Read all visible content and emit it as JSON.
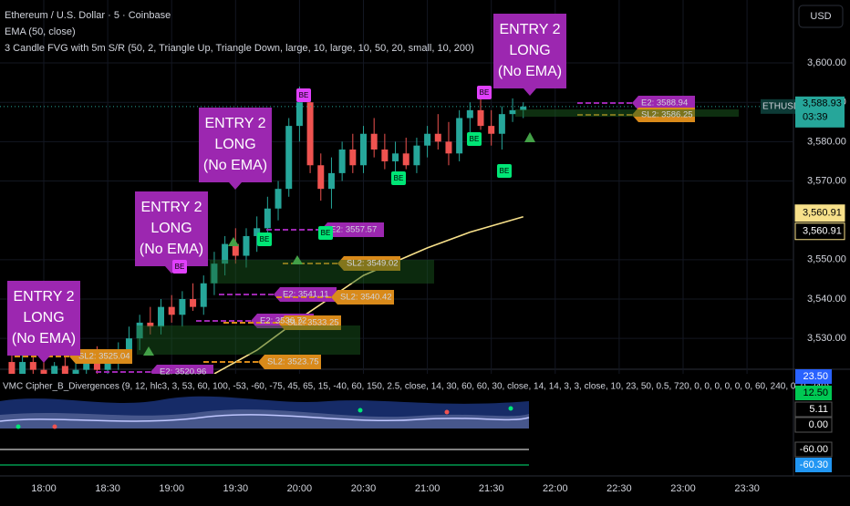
{
  "header": {
    "symbol": "Ethereum / U.S. Dollar · 5 · Coinbase",
    "indicator1": "EMA (50, close)",
    "indicator2": "3 Candle FVG with 5m S/R (50, 2, Triangle Up, Triangle Down, large, 10, large, 10, 50, 20, small, 10, 200)"
  },
  "currency": "USD",
  "chart_data": {
    "type": "candlestick",
    "x": [
      "17:45",
      "17:50",
      "17:55",
      "18:00",
      "18:05",
      "18:10",
      "18:15",
      "18:20",
      "18:25",
      "18:30",
      "18:35",
      "18:40",
      "18:45",
      "18:50",
      "18:55",
      "19:00",
      "19:05",
      "19:10",
      "19:15",
      "19:20",
      "19:25",
      "19:30",
      "19:35",
      "19:40",
      "19:45",
      "19:50",
      "19:55",
      "20:00",
      "20:05",
      "20:10",
      "20:15",
      "20:20",
      "20:25",
      "20:30",
      "20:35",
      "20:40",
      "20:45",
      "20:50",
      "20:55",
      "21:00",
      "21:05",
      "21:10",
      "21:15",
      "21:20",
      "21:25",
      "21:30",
      "21:35",
      "21:40",
      "21:45"
    ],
    "open": [
      3524,
      3521,
      3524,
      3522,
      3520,
      3523,
      3521,
      3522,
      3525,
      3522,
      3524,
      3527,
      3530,
      3534,
      3533,
      3538,
      3536,
      3540,
      3538,
      3544,
      3549,
      3554,
      3551,
      3556,
      3558,
      3563,
      3568,
      3584,
      3590,
      3574,
      3568,
      3572,
      3578,
      3574,
      3582,
      3578,
      3575,
      3577,
      3574,
      3579,
      3582,
      3580,
      3577,
      3586,
      3588,
      3584,
      3582,
      3587,
      3588
    ],
    "high": [
      3527,
      3526,
      3528,
      3525,
      3524,
      3526,
      3524,
      3526,
      3528,
      3525,
      3529,
      3533,
      3536,
      3538,
      3540,
      3541,
      3542,
      3544,
      3546,
      3552,
      3556,
      3558,
      3558,
      3561,
      3566,
      3570,
      3586,
      3594,
      3592,
      3577,
      3576,
      3580,
      3582,
      3584,
      3586,
      3582,
      3580,
      3581,
      3581,
      3584,
      3587,
      3585,
      3588,
      3590,
      3592,
      3588,
      3589,
      3591,
      3590
    ],
    "low": [
      3519,
      3518,
      3520,
      3518,
      3517,
      3519,
      3518,
      3520,
      3521,
      3518,
      3522,
      3524,
      3527,
      3531,
      3531,
      3534,
      3533,
      3537,
      3536,
      3541,
      3546,
      3549,
      3548,
      3552,
      3555,
      3560,
      3566,
      3580,
      3572,
      3565,
      3563,
      3570,
      3572,
      3572,
      3576,
      3573,
      3572,
      3573,
      3572,
      3576,
      3578,
      3574,
      3575,
      3582,
      3583,
      3579,
      3578,
      3585,
      3586
    ],
    "close": [
      3521,
      3524,
      3522,
      3520,
      3523,
      3521,
      3522,
      3525,
      3522,
      3524,
      3527,
      3530,
      3534,
      3533,
      3538,
      3536,
      3540,
      3538,
      3544,
      3549,
      3554,
      3551,
      3556,
      3558,
      3563,
      3568,
      3584,
      3590,
      3574,
      3568,
      3572,
      3578,
      3574,
      3582,
      3578,
      3575,
      3577,
      3574,
      3579,
      3582,
      3580,
      3577,
      3586,
      3588,
      3584,
      3582,
      3587,
      3588,
      3588.93
    ],
    "up_color": "#26a69a",
    "down_color": "#ef5350",
    "ema": {
      "name": "EMA (50, close)",
      "color": "#f7e08a",
      "x": [
        "19:20",
        "19:40",
        "20:00",
        "20:30",
        "21:00",
        "21:20",
        "21:45"
      ],
      "values": [
        3521,
        3527,
        3535,
        3546,
        3553,
        3557,
        3560.91
      ]
    },
    "ylim": [
      3521,
      3616
    ],
    "yticks": [
      {
        "value": 3600,
        "label": "3,600.00"
      },
      {
        "value": 3590,
        "label": "3,590.00"
      },
      {
        "value": 3580,
        "label": "3,580.00"
      },
      {
        "value": 3570,
        "label": "3,570.00"
      },
      {
        "value": 3550,
        "label": "3,550.00"
      },
      {
        "value": 3540,
        "label": "3,540.00"
      },
      {
        "value": 3530,
        "label": "3,530.00"
      }
    ],
    "xticks": [
      "18:00",
      "18:30",
      "19:00",
      "19:30",
      "20:00",
      "20:30",
      "21:00",
      "21:30",
      "22:00",
      "22:30",
      "23:00",
      "23:30"
    ],
    "last_price": {
      "name": "ETHUSD",
      "value": 3588.93,
      "label": "3,588.93",
      "countdown": "03:39"
    },
    "ema_last": [
      {
        "value": 3560.91,
        "label": "3,560.91"
      },
      {
        "value": 3560.91,
        "label": "3,560.91"
      }
    ],
    "grid": true
  },
  "entries": [
    [
      "ENTRY 2",
      "LONG",
      "(No EMA)"
    ],
    [
      "ENTRY 2",
      "LONG",
      "(No EMA)"
    ],
    [
      "ENTRY 2",
      "LONG",
      "(No EMA)"
    ],
    [
      "ENTRY 2",
      "LONG",
      "(No EMA)"
    ]
  ],
  "levels": [
    {
      "label": "E2: 3588.94",
      "color": "#9c27b0"
    },
    {
      "label": "SL2: 3586.25",
      "color": "#d98a1a"
    },
    {
      "label": "E2: 3557.57",
      "color": "#9c27b0"
    },
    {
      "label": "SL2: 3549.02",
      "color": "#d98a1a"
    },
    {
      "label": "E2: 3541.11",
      "color": "#9c27b0"
    },
    {
      "label": "SL2: 3540.42",
      "color": "#d98a1a"
    },
    {
      "label": "E2: 3536.72",
      "color": "#9c27b0"
    },
    {
      "label": "SL2: 3533.25",
      "color": "#d98a1a"
    },
    {
      "label": "SL2: 3525.04",
      "color": "#d98a1a"
    },
    {
      "label": "SL2: 3523.75",
      "color": "#d98a1a"
    },
    {
      "label": "E2: 3520.96",
      "color": "#9c27b0"
    }
  ],
  "be_tags": [
    {
      "label": "BE",
      "color": "#e040fb"
    },
    {
      "label": "BE",
      "color": "#e040fb"
    },
    {
      "label": "BE",
      "color": "#e040fb"
    },
    {
      "label": "BE",
      "color": "#00e676"
    },
    {
      "label": "BE",
      "color": "#00e676"
    },
    {
      "label": "BE",
      "color": "#00e676"
    },
    {
      "label": "BE",
      "color": "#00e676"
    },
    {
      "label": "BE",
      "color": "#00e676"
    }
  ],
  "oscillator": {
    "title": "VMC Cipher_B_Divergences (9, 12, hlc3, 3, 53, 60, 100, -53, -60, -75, 45, 65, 15, -40, 60, 150, 2.5, close, 14, 30, 60, 60, 30, close, 14, 14, 3, 3, close, 10, 23, 50, 0.5, 720, 0, 0, 0, 0, 0, 0, 60, 240, 0, 0, 240)",
    "levels": [
      {
        "value": 23.5,
        "label": "23.50"
      },
      {
        "value": 12.5,
        "label": "12.50"
      },
      {
        "value": 5.11,
        "label": "5.11"
      },
      {
        "value": 0,
        "label": "0.00"
      },
      {
        "value": -60,
        "label": "-60.00"
      },
      {
        "value": -60.3,
        "label": "-60.30"
      }
    ]
  }
}
